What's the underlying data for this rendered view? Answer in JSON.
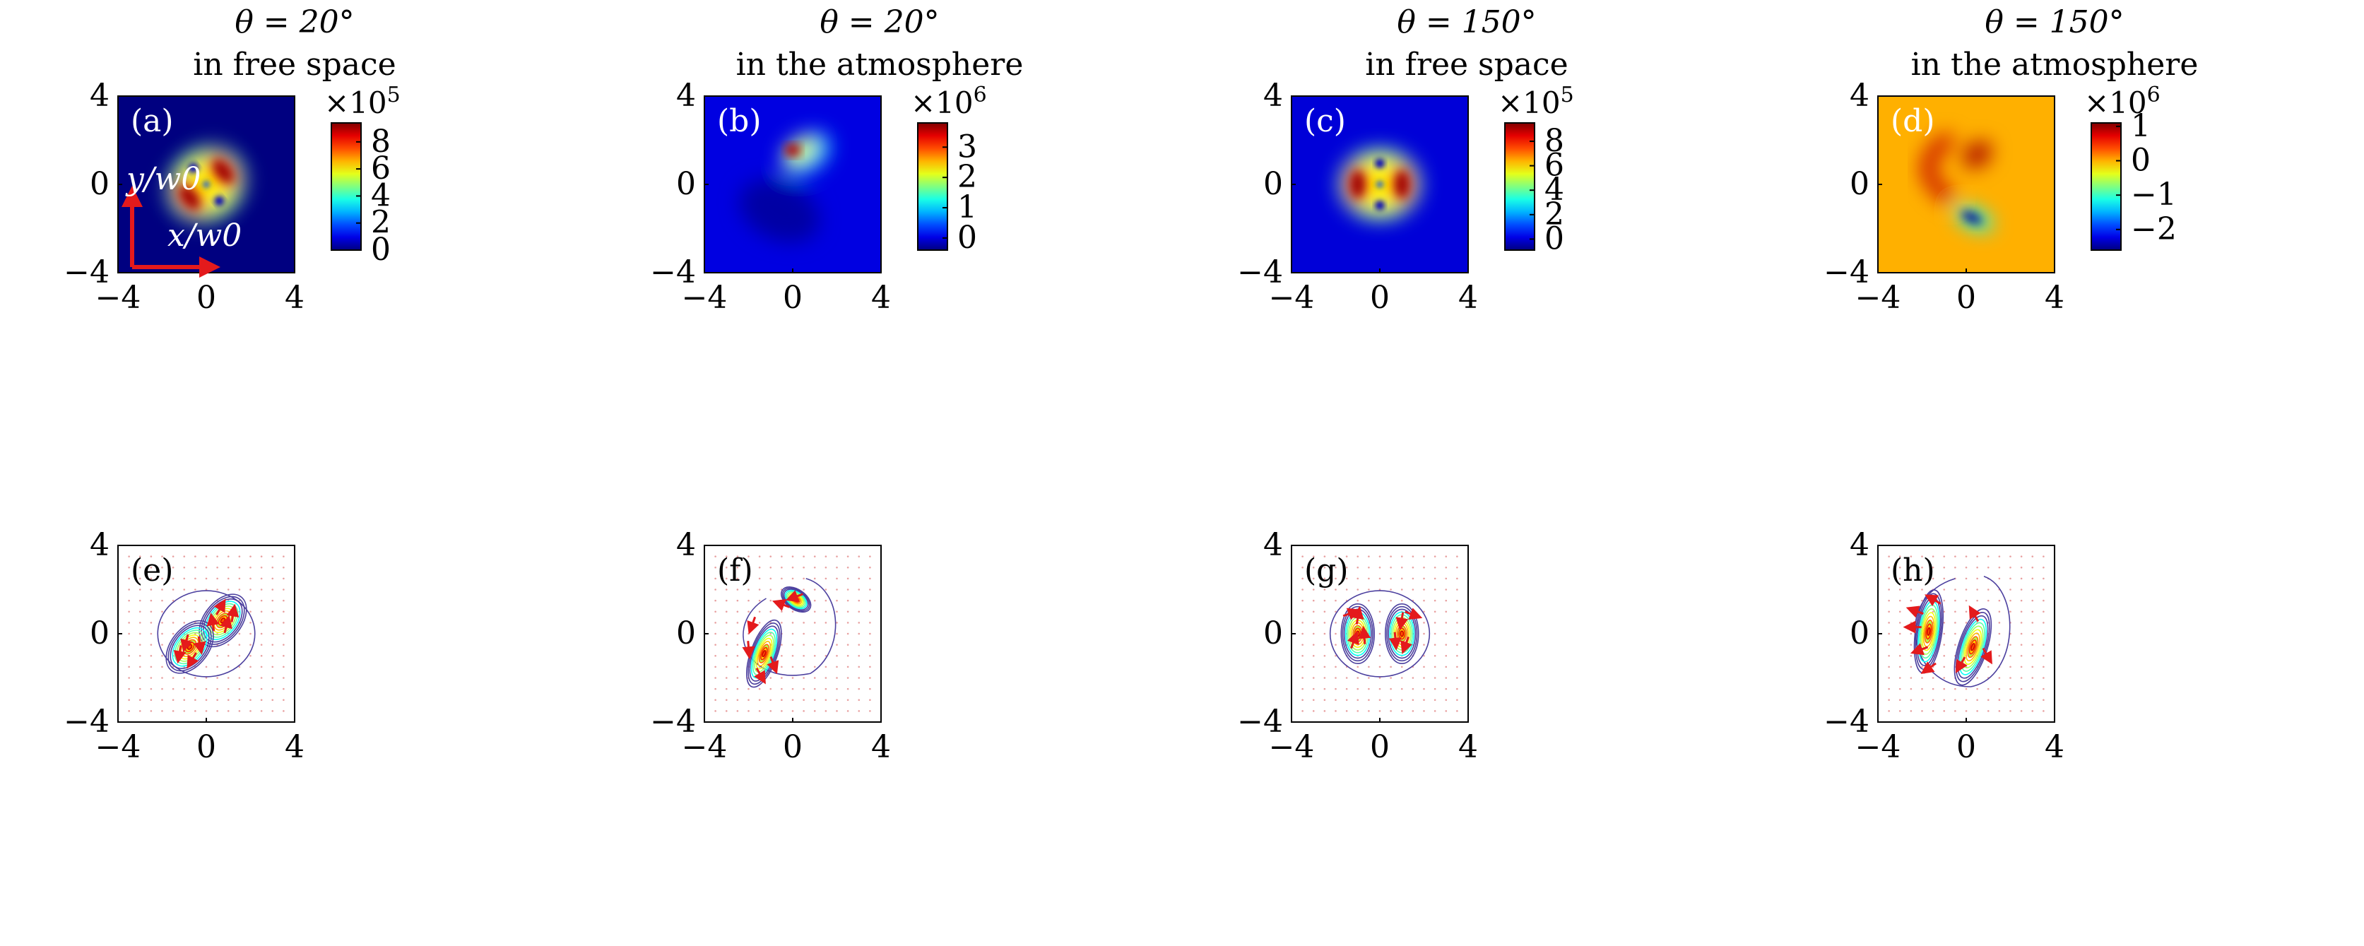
{
  "titles": [
    {
      "theta": "θ = 20°",
      "medium": "in free space"
    },
    {
      "theta": "θ = 20°",
      "medium": "in the atmosphere"
    },
    {
      "theta": "θ = 150°",
      "medium": "in free space"
    },
    {
      "theta": "θ = 150°",
      "medium": "in the atmosphere"
    }
  ],
  "axis_labels": {
    "x": "x/w0",
    "y": "y/w0"
  },
  "chart_data": [
    {
      "type": "heatmap",
      "panel": "(a)",
      "title": "θ = 20° in free space",
      "xlim": [
        -4,
        4
      ],
      "ylim": [
        -4,
        4
      ],
      "xticks": [
        -4,
        0,
        4
      ],
      "yticks": [
        -4,
        0,
        4
      ],
      "xlabel": "x/w0",
      "ylabel": "y/w0",
      "colorbar": {
        "exponent": "×10^5",
        "ticks": [
          0,
          2,
          4,
          6,
          8
        ],
        "range": [
          0,
          9.4
        ],
        "colormap": "jet"
      },
      "features": [
        {
          "label": "lobe",
          "x": 0.75,
          "y": 0.6,
          "peak": 9.2
        },
        {
          "label": "lobe",
          "x": -0.75,
          "y": -0.6,
          "peak": 9.2
        },
        {
          "label": "dark spot",
          "x": -0.45,
          "y": 0.55,
          "peak": 0
        },
        {
          "label": "dark spot",
          "x": 0.45,
          "y": -0.55,
          "peak": 0
        }
      ]
    },
    {
      "type": "heatmap",
      "panel": "(b)",
      "title": "θ = 20° in the atmosphere",
      "xlim": [
        -4,
        4
      ],
      "ylim": [
        -4,
        4
      ],
      "xticks": [
        -4,
        0,
        4
      ],
      "yticks": [
        -4,
        0,
        4
      ],
      "colorbar": {
        "exponent": "×10^6",
        "ticks": [
          0,
          1,
          2,
          3
        ],
        "range": [
          -0.4,
          3.8
        ],
        "colormap": "jet"
      },
      "features": [
        {
          "label": "bright crescent",
          "x": 0.1,
          "y": 1.4,
          "peak": 3.7
        },
        {
          "label": "faint shadow",
          "x": -0.6,
          "y": -1.2,
          "peak": -0.3
        }
      ]
    },
    {
      "type": "heatmap",
      "panel": "(c)",
      "title": "θ = 150° in free space",
      "xlim": [
        -4,
        4
      ],
      "ylim": [
        -4,
        4
      ],
      "xticks": [
        -4,
        0,
        4
      ],
      "yticks": [
        -4,
        0,
        4
      ],
      "colorbar": {
        "exponent": "×10^5",
        "ticks": [
          0,
          2,
          4,
          6,
          8
        ],
        "range": [
          -0.9,
          9.5
        ],
        "colormap": "jet"
      },
      "features": [
        {
          "label": "lobe",
          "x": -1.0,
          "y": 0.0,
          "peak": 9.3
        },
        {
          "label": "lobe",
          "x": 1.0,
          "y": 0.0,
          "peak": 9.3
        },
        {
          "label": "dark spot",
          "x": 0.0,
          "y": 0.95,
          "peak": -0.8
        },
        {
          "label": "dark spot",
          "x": 0.0,
          "y": -0.95,
          "peak": -0.8
        }
      ]
    },
    {
      "type": "heatmap",
      "panel": "(d)",
      "title": "θ = 150° in the atmosphere",
      "xlim": [
        -4,
        4
      ],
      "ylim": [
        -4,
        4
      ],
      "xticks": [
        -4,
        0,
        4
      ],
      "yticks": [
        -4,
        0,
        4
      ],
      "colorbar": {
        "exponent": "×10^6",
        "ticks": [
          -2,
          -1,
          0,
          1
        ],
        "range": [
          -2.6,
          1.1
        ],
        "colormap": "jet"
      },
      "features": [
        {
          "label": "positive arc",
          "x": -1.2,
          "y": 0.8,
          "peak": 0.9
        },
        {
          "label": "positive blob",
          "x": 0.5,
          "y": 1.4,
          "peak": 1.0
        },
        {
          "label": "negative blob",
          "x": 0.3,
          "y": -1.6,
          "peak": -2.5
        }
      ]
    },
    {
      "type": "contour",
      "panel": "(e)",
      "xlim": [
        -4,
        4
      ],
      "ylim": [
        -4,
        4
      ],
      "xticks": [
        -4,
        0,
        4
      ],
      "yticks": [
        -4,
        0,
        4
      ],
      "overlay": "red vector arrows",
      "pattern": "two diagonal lobes, θ = 20°, free space"
    },
    {
      "type": "contour",
      "panel": "(f)",
      "xlim": [
        -4,
        4
      ],
      "ylim": [
        -4,
        4
      ],
      "xticks": [
        -4,
        0,
        4
      ],
      "yticks": [
        -4,
        0,
        4
      ],
      "overlay": "red vector arrows",
      "pattern": "distorted crescents, θ = 20°, atmosphere"
    },
    {
      "type": "contour",
      "panel": "(g)",
      "xlim": [
        -4,
        4
      ],
      "ylim": [
        -4,
        4
      ],
      "xticks": [
        -4,
        0,
        4
      ],
      "yticks": [
        -4,
        0,
        4
      ],
      "overlay": "red vector arrows",
      "pattern": "two horizontal lobes, θ = 150°, free space"
    },
    {
      "type": "contour",
      "panel": "(h)",
      "xlim": [
        -4,
        4
      ],
      "ylim": [
        -4,
        4
      ],
      "xticks": [
        -4,
        0,
        4
      ],
      "yticks": [
        -4,
        0,
        4
      ],
      "overlay": "red vector arrows",
      "pattern": "two curved crescents, θ = 150°, atmosphere"
    }
  ],
  "colors": {
    "axis": "#000000",
    "arrow": "#e41a1c",
    "contour": "#4b3f9e"
  }
}
